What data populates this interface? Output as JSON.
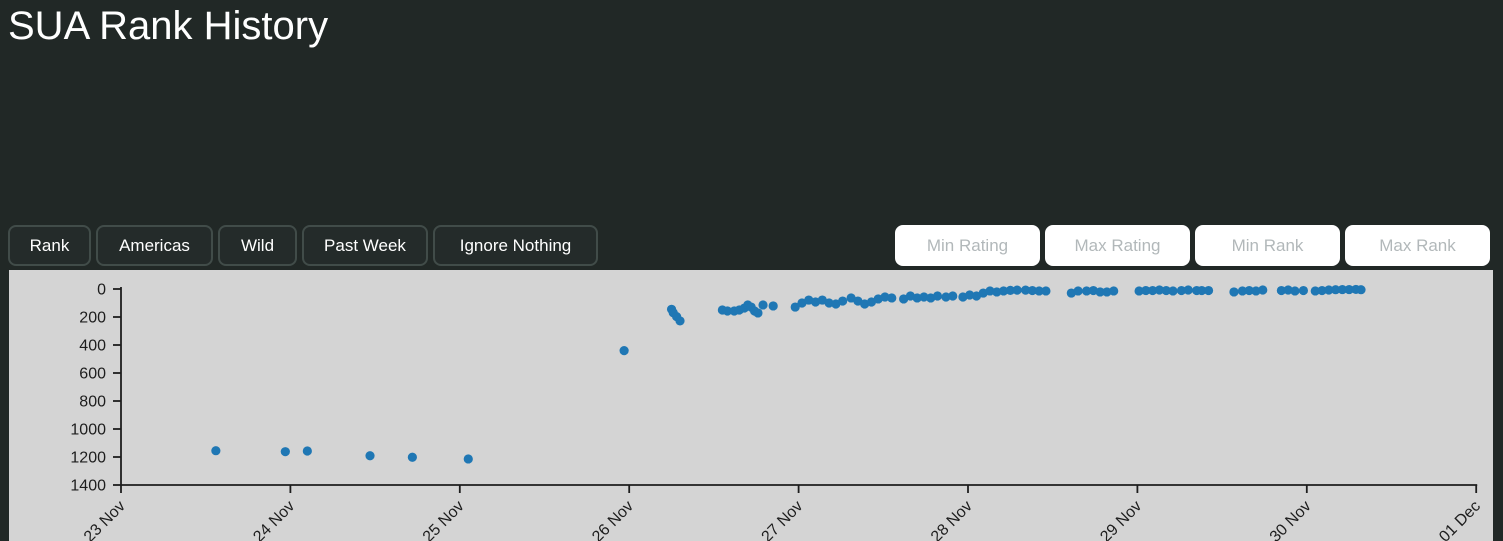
{
  "page": {
    "title": "SUA Rank History",
    "background_color": "#212826"
  },
  "toolbar": {
    "buttons": [
      {
        "label": "Rank"
      },
      {
        "label": "Americas"
      },
      {
        "label": "Wild"
      },
      {
        "label": "Past Week"
      },
      {
        "label": "Ignore Nothing"
      }
    ],
    "inputs": [
      {
        "placeholder": "Min Rating",
        "value": ""
      },
      {
        "placeholder": "Max Rating",
        "value": ""
      },
      {
        "placeholder": "Min Rank",
        "value": ""
      },
      {
        "placeholder": "Max Rank",
        "value": ""
      }
    ]
  },
  "chart_data": {
    "type": "scatter",
    "title": "",
    "xlabel": "",
    "ylabel": "",
    "plot_bg": "#d4d4d4",
    "point_color": "#1f77b4",
    "axis_color": "#1d1d1d",
    "grid": false,
    "legend": false,
    "y_axis_inverted": true,
    "y_ticks": [
      0,
      200,
      400,
      600,
      800,
      1000,
      1200,
      1400
    ],
    "ylim": [
      0,
      1400
    ],
    "x_tick_labels": [
      "23 Nov",
      "24 Nov",
      "25 Nov",
      "26 Nov",
      "27 Nov",
      "28 Nov",
      "29 Nov",
      "30 Nov",
      "01 Dec"
    ],
    "x_unit": "days_after_23_Nov",
    "xlim_days": [
      0,
      8
    ],
    "points": [
      [
        0.56,
        1155
      ],
      [
        0.97,
        1162
      ],
      [
        1.1,
        1157
      ],
      [
        1.47,
        1191
      ],
      [
        1.72,
        1202
      ],
      [
        2.05,
        1214
      ],
      [
        2.97,
        440
      ],
      [
        3.25,
        145
      ],
      [
        3.26,
        170
      ],
      [
        3.28,
        197
      ],
      [
        3.3,
        228
      ],
      [
        3.55,
        150
      ],
      [
        3.58,
        157
      ],
      [
        3.62,
        157
      ],
      [
        3.65,
        150
      ],
      [
        3.68,
        136
      ],
      [
        3.7,
        114
      ],
      [
        3.72,
        129
      ],
      [
        3.74,
        157
      ],
      [
        3.76,
        171
      ],
      [
        3.79,
        114
      ],
      [
        3.85,
        121
      ],
      [
        3.98,
        129
      ],
      [
        4.02,
        100
      ],
      [
        4.06,
        79
      ],
      [
        4.1,
        93
      ],
      [
        4.14,
        79
      ],
      [
        4.18,
        100
      ],
      [
        4.22,
        107
      ],
      [
        4.26,
        86
      ],
      [
        4.31,
        64
      ],
      [
        4.35,
        86
      ],
      [
        4.39,
        107
      ],
      [
        4.43,
        93
      ],
      [
        4.47,
        71
      ],
      [
        4.51,
        57
      ],
      [
        4.55,
        64
      ],
      [
        4.62,
        71
      ],
      [
        4.66,
        50
      ],
      [
        4.7,
        64
      ],
      [
        4.74,
        57
      ],
      [
        4.78,
        64
      ],
      [
        4.82,
        50
      ],
      [
        4.87,
        57
      ],
      [
        4.91,
        50
      ],
      [
        4.97,
        57
      ],
      [
        5.01,
        43
      ],
      [
        5.05,
        50
      ],
      [
        5.09,
        29
      ],
      [
        5.13,
        14
      ],
      [
        5.17,
        21
      ],
      [
        5.21,
        14
      ],
      [
        5.25,
        10
      ],
      [
        5.29,
        8
      ],
      [
        5.34,
        8
      ],
      [
        5.38,
        11
      ],
      [
        5.42,
        14
      ],
      [
        5.46,
        14
      ],
      [
        5.61,
        29
      ],
      [
        5.65,
        14
      ],
      [
        5.7,
        14
      ],
      [
        5.74,
        11
      ],
      [
        5.78,
        21
      ],
      [
        5.82,
        21
      ],
      [
        5.86,
        14
      ],
      [
        6.01,
        14
      ],
      [
        6.05,
        11
      ],
      [
        6.09,
        11
      ],
      [
        6.13,
        7
      ],
      [
        6.17,
        11
      ],
      [
        6.21,
        14
      ],
      [
        6.26,
        11
      ],
      [
        6.3,
        7
      ],
      [
        6.35,
        11
      ],
      [
        6.38,
        11
      ],
      [
        6.42,
        11
      ],
      [
        6.57,
        21
      ],
      [
        6.62,
        14
      ],
      [
        6.66,
        11
      ],
      [
        6.7,
        14
      ],
      [
        6.74,
        7
      ],
      [
        6.85,
        11
      ],
      [
        6.89,
        7
      ],
      [
        6.93,
        14
      ],
      [
        6.98,
        11
      ],
      [
        7.05,
        14
      ],
      [
        7.09,
        11
      ],
      [
        7.13,
        7
      ],
      [
        7.17,
        5
      ],
      [
        7.21,
        4
      ],
      [
        7.25,
        4
      ],
      [
        7.29,
        3
      ],
      [
        7.32,
        5
      ]
    ]
  }
}
